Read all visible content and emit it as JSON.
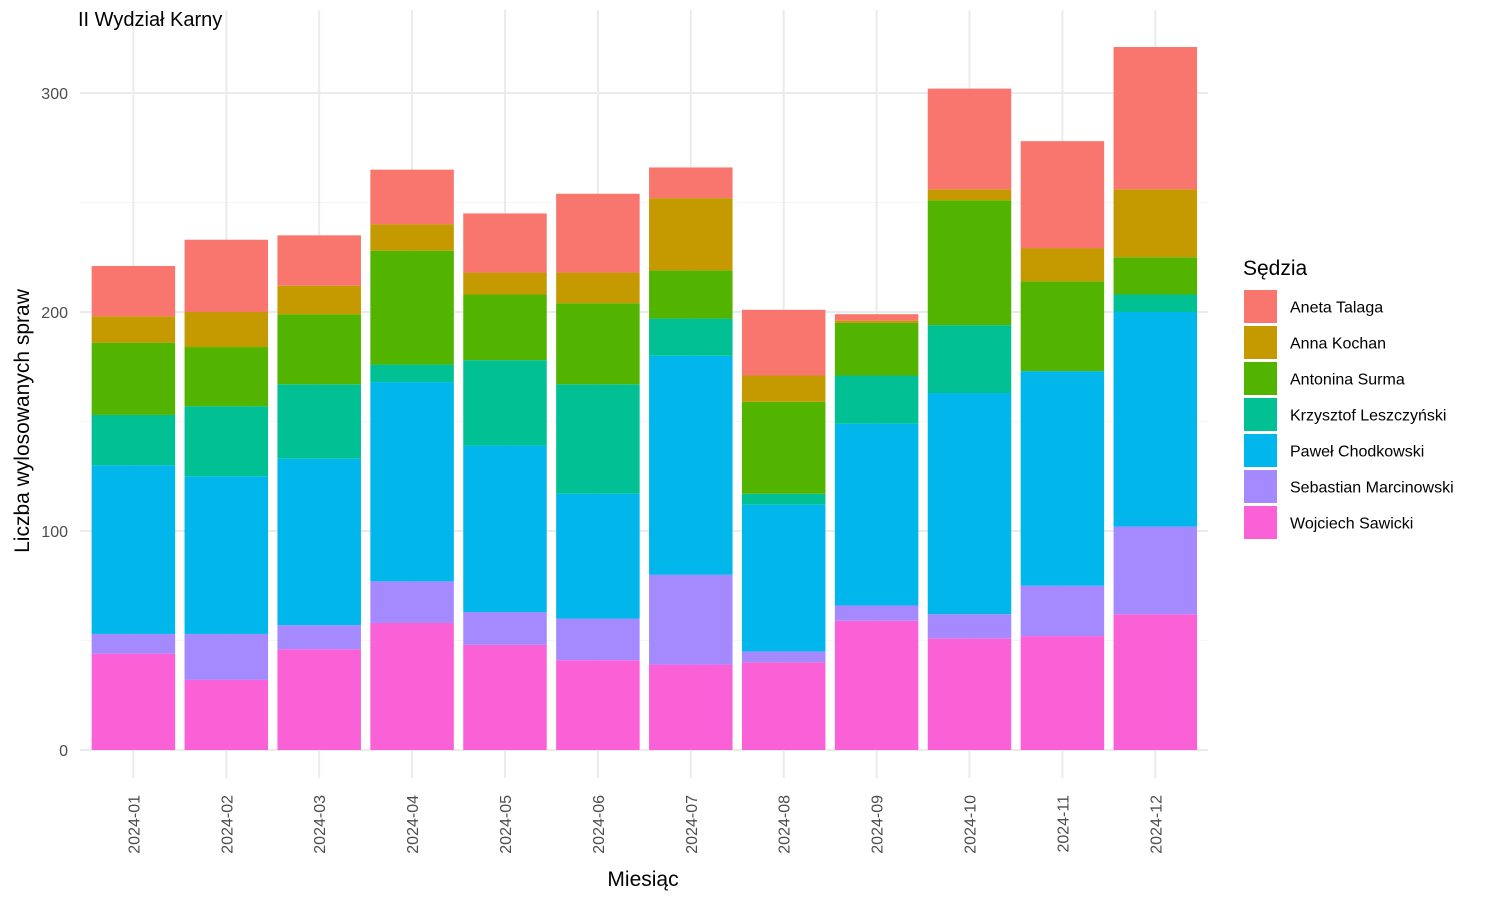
{
  "chart_data": {
    "type": "bar",
    "stacked": true,
    "title": "II Wydział Karny",
    "xlabel": "Miesiąc",
    "ylabel": "Liczba wylosowanych spraw",
    "ylim": [
      0,
      320
    ],
    "yticks": [
      0,
      100,
      200,
      300
    ],
    "grid": true,
    "legend_title": "Sędzia",
    "legend_position": "right",
    "categories": [
      "2024-01",
      "2024-02",
      "2024-03",
      "2024-04",
      "2024-05",
      "2024-06",
      "2024-07",
      "2024-08",
      "2024-09",
      "2024-10",
      "2024-11",
      "2024-12"
    ],
    "series": [
      {
        "name": "Aneta Talaga",
        "color": "#F8766D",
        "values": [
          23,
          33,
          23,
          25,
          27,
          36,
          14,
          30,
          3,
          46,
          49,
          65
        ]
      },
      {
        "name": "Anna Kochan",
        "color": "#C49A00",
        "values": [
          12,
          16,
          13,
          12,
          10,
          14,
          33,
          12,
          1,
          5,
          15,
          31
        ]
      },
      {
        "name": "Antonina Surma",
        "color": "#53B400",
        "values": [
          33,
          27,
          32,
          52,
          30,
          37,
          22,
          42,
          24,
          57,
          41,
          17
        ]
      },
      {
        "name": "Krzysztof Leszczyński",
        "color": "#00C094",
        "values": [
          23,
          32,
          34,
          8,
          39,
          50,
          17,
          5,
          22,
          31,
          0,
          8
        ]
      },
      {
        "name": "Paweł Chodkowski",
        "color": "#00B6EB",
        "values": [
          77,
          72,
          76,
          91,
          76,
          57,
          100,
          67,
          83,
          101,
          98,
          98
        ]
      },
      {
        "name": "Sebastian Marcinowski",
        "color": "#A58AFF",
        "values": [
          9,
          21,
          11,
          19,
          15,
          19,
          41,
          5,
          7,
          11,
          23,
          40
        ]
      },
      {
        "name": "Wojciech Sawicki",
        "color": "#FB61D7",
        "values": [
          44,
          32,
          46,
          58,
          48,
          41,
          39,
          40,
          59,
          51,
          52,
          62
        ]
      }
    ]
  }
}
